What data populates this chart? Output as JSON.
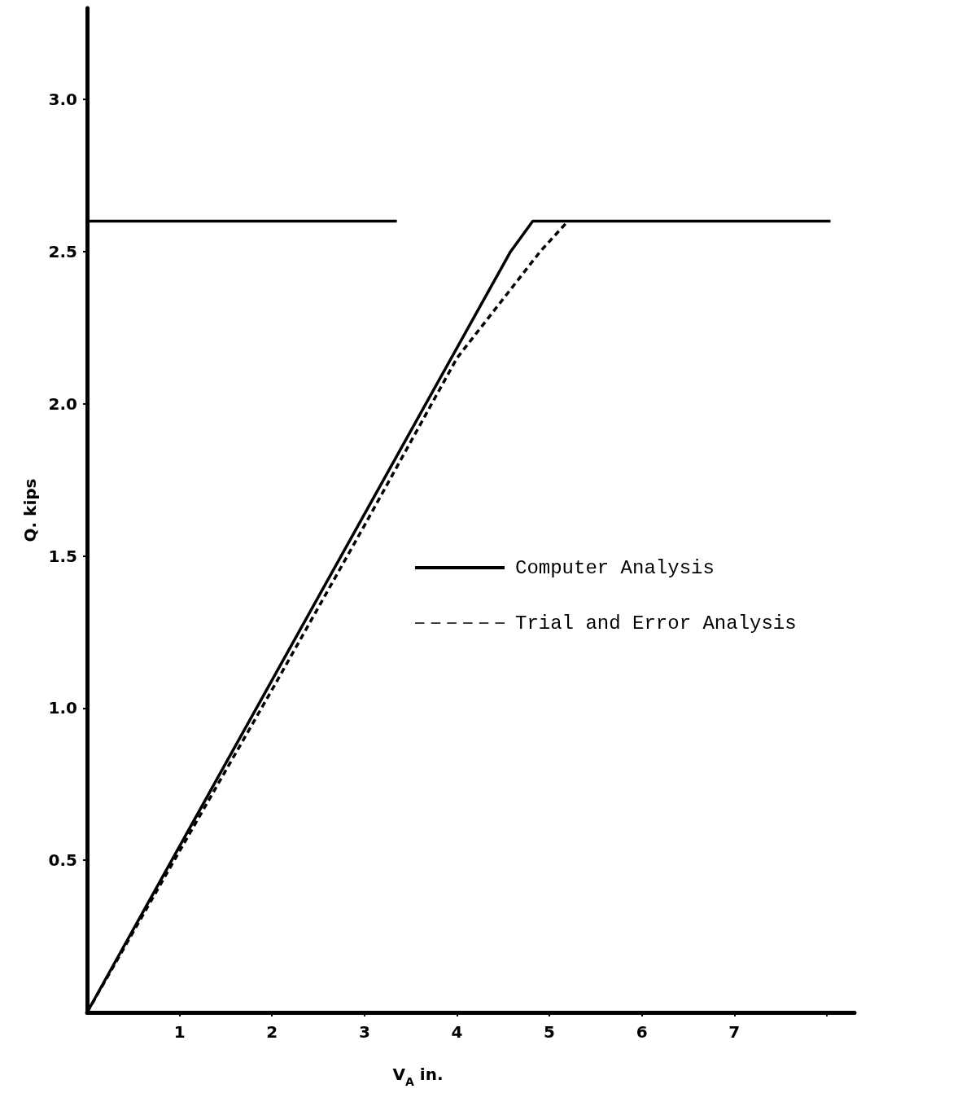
{
  "chart_data": {
    "type": "line",
    "xlabel": "V$_{A}$ in.",
    "ylabel": "Q. kips",
    "xlim": [
      0,
      8.3
    ],
    "xticks": [
      1,
      2,
      3,
      4,
      5,
      6,
      7,
      {
        "value": 8,
        "label": null
      }
    ],
    "ylim": [
      0,
      3.3
    ],
    "yticks": [
      0.5,
      {
        "value": 1,
        "label": "1.0"
      },
      1.5,
      {
        "value": 2,
        "label": "2.0"
      },
      2.5,
      {
        "value": 3,
        "label": "3.0"
      }
    ],
    "grid": false,
    "legend": "right",
    "marker": "none",
    "series": [
      {
        "color": "#000000",
        "line_style": "solid",
        "x": [
          0,
          3.35
        ],
        "values": [
          2.6,
          2.6
        ]
      },
      {
        "name": "Computer Analysis",
        "color": "#000000",
        "line_style": "solid",
        "x": [
          0,
          4.58,
          4.82,
          8.04
        ],
        "values": [
          0,
          2.5,
          2.6,
          2.6
        ]
      },
      {
        "name": "Trial and Error Analysis",
        "color": "#000000",
        "line_style": "dashed",
        "x": [
          0,
          2,
          3,
          4,
          4.9,
          5.2
        ],
        "values": [
          0,
          1.06,
          1.6,
          2.15,
          2.5,
          2.6
        ]
      }
    ]
  }
}
